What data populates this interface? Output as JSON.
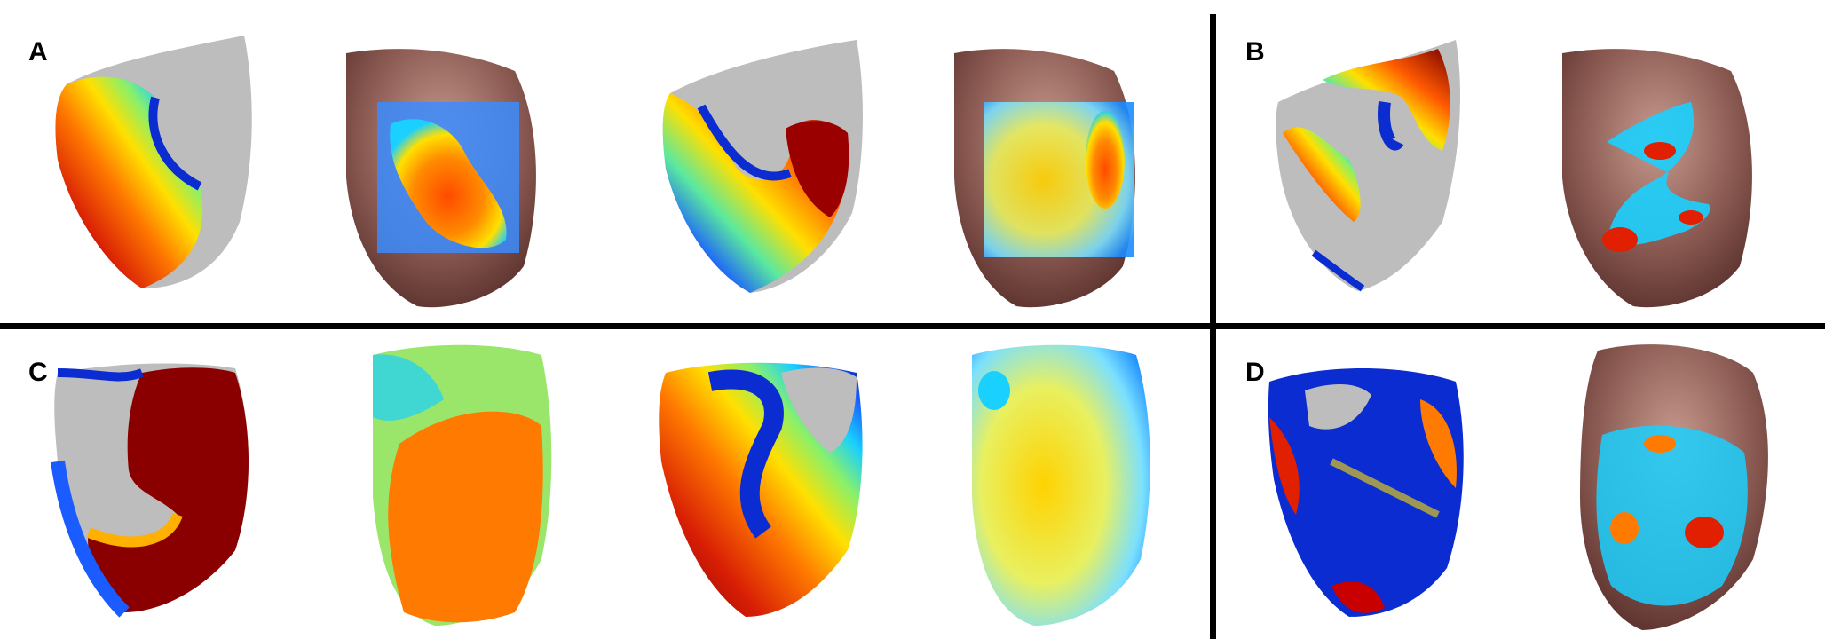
{
  "figure": {
    "panels": [
      {
        "letter": "A",
        "images": [
          "simulation",
          "optical-map",
          "simulation",
          "optical-map"
        ]
      },
      {
        "letter": "B",
        "images": [
          "simulation",
          "optical-map"
        ]
      },
      {
        "letter": "C",
        "images": [
          "simulation",
          "optical-map",
          "simulation",
          "optical-map"
        ]
      },
      {
        "letter": "D",
        "images": [
          "simulation",
          "optical-map"
        ]
      }
    ]
  },
  "colors": {
    "background": "#ffffff",
    "divider": "#000000",
    "tissue": "#7a4a44",
    "tissue_light": "#c89a8e",
    "unexcited": "#b8b8b8",
    "jet": [
      "#7a0000",
      "#d81e05",
      "#ff7a00",
      "#ffe000",
      "#8af06a",
      "#1ad0ff",
      "#1a5cff",
      "#00158a"
    ]
  }
}
